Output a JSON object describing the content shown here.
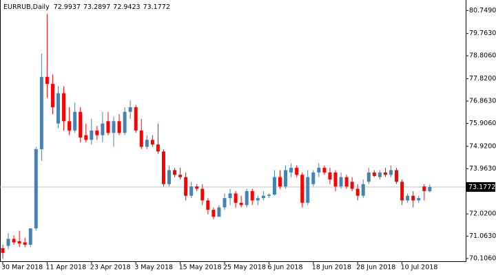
{
  "chart_data": {
    "type": "candlestick",
    "title": "EURRUB,Daily",
    "ohlc_header": [
      72.9937,
      73.2897,
      72.9423,
      73.1772
    ],
    "current_price": 73.1772,
    "up_color": "#4682b4",
    "down_color": "#ff0000",
    "categories": [
      "30 Mar 2018",
      null,
      null,
      null,
      null,
      null,
      null,
      null,
      "11 Apr 2018",
      null,
      null,
      null,
      null,
      null,
      null,
      null,
      "23 Apr 2018",
      null,
      null,
      null,
      null,
      null,
      null,
      null,
      "3 May 2018",
      null,
      null,
      null,
      null,
      null,
      null,
      null,
      "15 May 2018",
      null,
      null,
      null,
      null,
      null,
      null,
      null,
      "25 May 2018",
      null,
      null,
      null,
      null,
      null,
      null,
      null,
      "6 Jun 2018",
      null,
      null,
      null,
      null,
      null,
      null,
      null,
      "18 Jun 2018",
      null,
      null,
      null,
      null,
      null,
      null,
      null,
      "28 Jun 2018",
      null,
      null,
      null,
      null,
      null,
      null,
      null,
      "10 Jul 2018",
      null,
      null,
      null,
      null,
      null
    ],
    "open": [
      70.55,
      70.65,
      70.95,
      70.85,
      70.8,
      70.7,
      71.4,
      74.8,
      77.9,
      77.6,
      75.9,
      77.2,
      76.0,
      75.6,
      76.4,
      75.4,
      75.2,
      75.6,
      75.4,
      76.0,
      75.5,
      76.0,
      75.5,
      76.4,
      76.6,
      75.6,
      74.9,
      75.2,
      75.0,
      74.7,
      73.3,
      73.9,
      73.7,
      73.6,
      72.8,
      73.2,
      73.1,
      72.6,
      72.2,
      71.9,
      72.3,
      72.7,
      72.9,
      72.5,
      72.4,
      73.0,
      72.6,
      72.7,
      72.8,
      72.85,
      73.6,
      73.2,
      73.8,
      74.0,
      73.7,
      72.5,
      73.3,
      73.8,
      74.0,
      73.8,
      73.8,
      73.2,
      73.6,
      73.4,
      73.1,
      72.8,
      73.4,
      73.8,
      73.6,
      73.8,
      73.7,
      73.9,
      73.4,
      72.6,
      72.8,
      72.6,
      73.2,
      72.9937
    ],
    "high": [
      70.7,
      71.2,
      71.1,
      71.3,
      71.0,
      71.4,
      74.9,
      78.9,
      80.6,
      78.0,
      77.5,
      77.5,
      76.6,
      76.8,
      76.6,
      75.9,
      76.1,
      75.8,
      76.4,
      76.4,
      76.2,
      76.3,
      76.6,
      76.9,
      76.7,
      76.1,
      75.4,
      75.4,
      75.9,
      74.8,
      74.1,
      74.0,
      74.0,
      73.8,
      73.4,
      73.3,
      73.3,
      72.7,
      72.3,
      72.4,
      72.9,
      73.1,
      73.0,
      72.8,
      73.1,
      73.1,
      72.8,
      73.0,
      72.9,
      73.9,
      73.9,
      74.1,
      74.2,
      74.1,
      73.8,
      73.9,
      73.9,
      74.2,
      74.1,
      74.0,
      73.9,
      73.8,
      73.7,
      73.6,
      73.3,
      73.5,
      74.0,
      73.9,
      73.9,
      74.0,
      74.1,
      74.0,
      73.5,
      72.9,
      73.0,
      72.8,
      73.3,
      73.2897
    ],
    "low": [
      70.1,
      70.5,
      70.7,
      70.6,
      70.6,
      70.6,
      71.3,
      74.3,
      77.0,
      76.3,
      75.7,
      75.6,
      75.4,
      75.5,
      75.1,
      75.1,
      75.0,
      75.2,
      75.1,
      75.4,
      74.9,
      75.4,
      75.4,
      76.1,
      75.5,
      74.8,
      74.8,
      74.9,
      74.6,
      73.2,
      73.2,
      73.6,
      73.5,
      72.6,
      72.7,
      73.0,
      72.4,
      72.0,
      71.8,
      71.9,
      72.2,
      72.4,
      72.3,
      72.3,
      72.3,
      72.4,
      72.4,
      72.6,
      72.7,
      72.8,
      73.1,
      73.1,
      73.6,
      73.6,
      72.3,
      72.4,
      73.2,
      73.6,
      73.7,
      73.3,
      73.0,
      73.1,
      73.1,
      73.0,
      72.6,
      72.7,
      73.3,
      73.6,
      73.5,
      73.6,
      73.6,
      73.3,
      72.4,
      72.5,
      72.3,
      72.5,
      72.6,
      72.9423
    ],
    "close": [
      70.35,
      70.95,
      70.8,
      70.75,
      70.7,
      71.4,
      74.8,
      77.9,
      77.6,
      76.6,
      77.2,
      76.0,
      75.6,
      76.4,
      75.3,
      75.2,
      75.6,
      75.4,
      75.9,
      75.5,
      76.0,
      75.5,
      76.4,
      76.6,
      75.6,
      74.9,
      75.2,
      75.0,
      74.7,
      73.3,
      73.9,
      73.7,
      73.6,
      72.8,
      73.2,
      73.1,
      72.6,
      72.2,
      71.9,
      72.3,
      72.7,
      72.9,
      72.5,
      72.4,
      73.0,
      72.6,
      72.7,
      72.8,
      72.85,
      73.6,
      73.2,
      73.9,
      74.0,
      73.7,
      72.5,
      73.6,
      73.8,
      74.0,
      73.8,
      73.5,
      73.2,
      73.6,
      73.2,
      73.1,
      72.8,
      73.3,
      73.8,
      73.65,
      73.8,
      73.7,
      73.9,
      73.4,
      72.6,
      72.8,
      72.6,
      72.7,
      73.0,
      73.1772
    ],
    "ylim": [
      69.99,
      81.2
    ],
    "yticks": [
      {
        "value": 80.749,
        "label": "80.7490"
      },
      {
        "value": 79.763,
        "label": "79.7630"
      },
      {
        "value": 78.806,
        "label": "78.8060"
      },
      {
        "value": 77.82,
        "label": "77.8200"
      },
      {
        "value": 76.863,
        "label": "76.8630"
      },
      {
        "value": 75.906,
        "label": "75.9060"
      },
      {
        "value": 74.92,
        "label": "74.9200"
      },
      {
        "value": 73.963,
        "label": "73.9630"
      },
      {
        "value": 72.02,
        "label": "72.0200"
      },
      {
        "value": 71.063,
        "label": "71.0630"
      },
      {
        "value": 70.106,
        "label": "70.1060"
      }
    ]
  }
}
